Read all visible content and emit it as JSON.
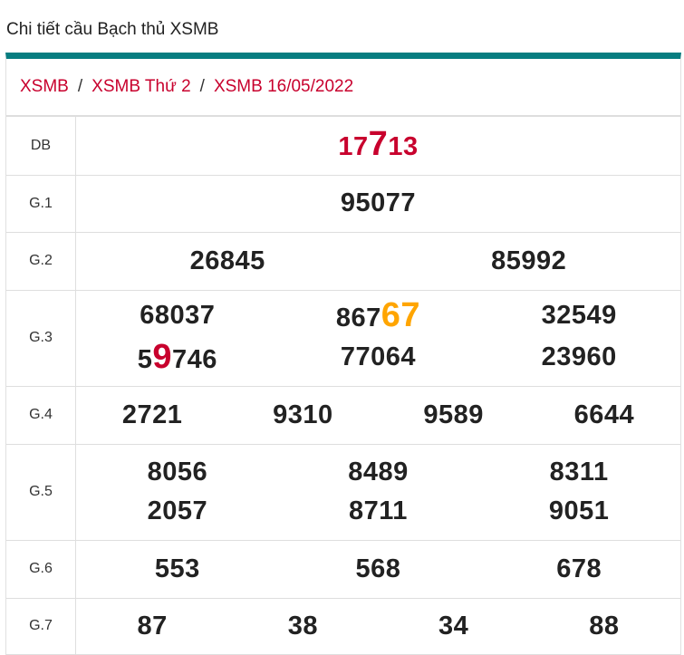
{
  "title": "Chi tiết cầu Bạch thủ XSMB",
  "breadcrumb": [
    "XSMB",
    "XSMB Thứ 2",
    "XSMB 16/05/2022"
  ],
  "colors": {
    "accent": "#077d80",
    "red": "#c8002d",
    "orange": "#ffa500"
  },
  "rows": [
    {
      "label": "DB",
      "cols": 1,
      "height": 64,
      "numbers": [
        {
          "pre": "17",
          "hl": "7",
          "post": "13",
          "color": "#c8002d",
          "all_color": true
        }
      ]
    },
    {
      "label": "G.1",
      "cols": 1,
      "height": 63,
      "numbers": [
        {
          "pre": "95077"
        }
      ]
    },
    {
      "label": "G.2",
      "cols": 2,
      "height": 64,
      "numbers": [
        {
          "pre": "26845"
        },
        {
          "pre": "85992"
        }
      ]
    },
    {
      "label": "G.3",
      "cols": 3,
      "height": 106,
      "numbers": [
        {
          "pre": "68037"
        },
        {
          "pre": "867",
          "hl": "67",
          "color": "#ffa500"
        },
        {
          "pre": "32549"
        },
        {
          "pre": "5",
          "hl": "9",
          "post": "746",
          "color": "#c8002d"
        },
        {
          "pre": "77064"
        },
        {
          "pre": "23960"
        }
      ]
    },
    {
      "label": "G.4",
      "cols": 4,
      "height": 64,
      "numbers": [
        {
          "pre": "2721"
        },
        {
          "pre": "9310"
        },
        {
          "pre": "9589"
        },
        {
          "pre": "6644"
        }
      ]
    },
    {
      "label": "G.5",
      "cols": 3,
      "height": 106,
      "numbers": [
        {
          "pre": "8056"
        },
        {
          "pre": "8489"
        },
        {
          "pre": "8311"
        },
        {
          "pre": "2057"
        },
        {
          "pre": "8711"
        },
        {
          "pre": "9051"
        }
      ]
    },
    {
      "label": "G.6",
      "cols": 3,
      "height": 64,
      "numbers": [
        {
          "pre": "553"
        },
        {
          "pre": "568"
        },
        {
          "pre": "678"
        }
      ]
    },
    {
      "label": "G.7",
      "cols": 4,
      "height": 62,
      "numbers": [
        {
          "pre": "87"
        },
        {
          "pre": "38"
        },
        {
          "pre": "34"
        },
        {
          "pre": "88"
        }
      ]
    }
  ]
}
